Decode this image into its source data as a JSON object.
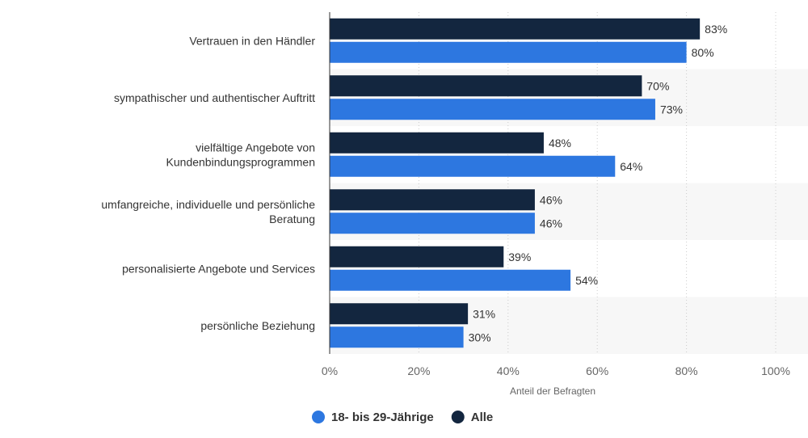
{
  "chart_data": {
    "type": "bar",
    "orientation": "horizontal",
    "categories": [
      [
        "Vertrauen in den Händler"
      ],
      [
        "sympathischer und authentischer Auftritt"
      ],
      [
        "vielfältige Angebote von",
        "Kundenbindungsprogrammen"
      ],
      [
        "umfangreiche, individuelle und persönliche",
        "Beratung"
      ],
      [
        "personalisierte Angebote und Services"
      ],
      [
        "persönliche Beziehung"
      ]
    ],
    "series": [
      {
        "name": "Alle",
        "color": "#13263f",
        "values": [
          83,
          70,
          48,
          46,
          39,
          31
        ]
      },
      {
        "name": "18- bis 29-Jährige",
        "color": "#2d77e0",
        "values": [
          80,
          73,
          64,
          46,
          54,
          30
        ]
      }
    ],
    "value_suffix": "%",
    "xlabel": "Anteil der Befragten",
    "xlim": [
      0,
      100
    ],
    "xticks": [
      0,
      20,
      40,
      60,
      80,
      100
    ],
    "xtick_labels": [
      "0%",
      "20%",
      "40%",
      "60%",
      "80%",
      "100%"
    ],
    "grid": true,
    "legend_position": "bottom",
    "legend_order": [
      "18- bis 29-Jährige",
      "Alle"
    ]
  }
}
